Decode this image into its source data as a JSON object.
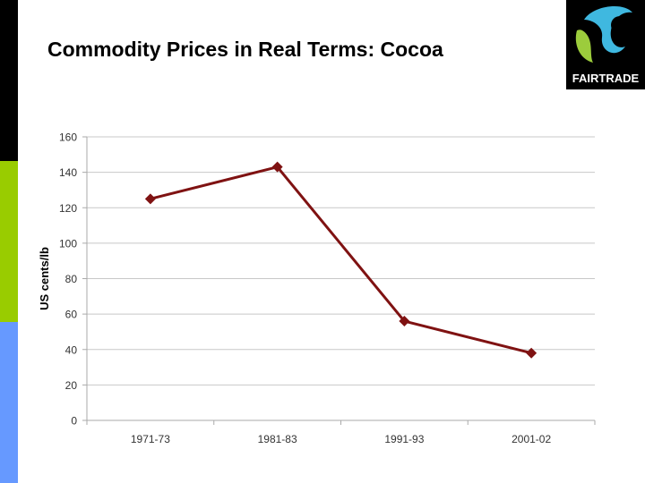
{
  "slide": {
    "title": "Commodity Prices in Real Terms: Cocoa"
  },
  "logo": {
    "text": "FAIRTRADE",
    "colors": {
      "background": "#000000",
      "blue": "#3fb8e0",
      "green": "#9ccc3c",
      "text": "#ffffff"
    }
  },
  "sidebar_colors": [
    "#000000",
    "#99cc00",
    "#6699ff"
  ],
  "chart_data": {
    "type": "line",
    "title": "",
    "xlabel": "",
    "ylabel": "US cents/lb",
    "categories": [
      "1971-73",
      "1981-83",
      "1991-93",
      "2001-02"
    ],
    "series": [
      {
        "values": [
          125,
          143,
          56,
          38
        ],
        "color": "#7f1212",
        "marker": "diamond"
      }
    ],
    "ylim": [
      0,
      160
    ],
    "yticks": [
      0,
      20,
      40,
      60,
      80,
      100,
      120,
      140,
      160
    ],
    "grid": true,
    "legend": "none"
  }
}
